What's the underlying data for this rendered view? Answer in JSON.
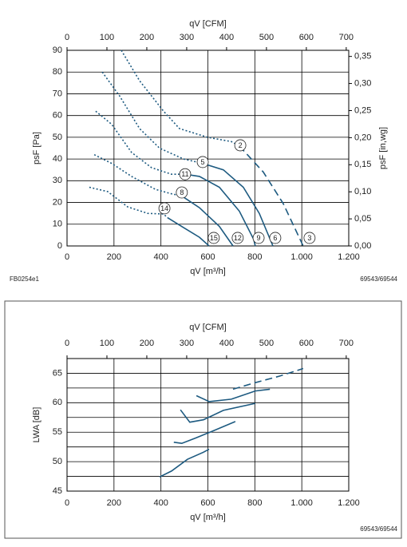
{
  "chart_data": [
    {
      "type": "line",
      "x_label": "qV [m³/h]",
      "x2_label": "qV [CFM]",
      "y_label": "psF [Pa]",
      "y2_label": "psF [in,wg]",
      "xlim": [
        0,
        1200
      ],
      "xticks": [
        0,
        200,
        400,
        600,
        800,
        {
          "value": 1000,
          "label": "1.000"
        },
        {
          "value": 1200,
          "label": "1.200"
        }
      ],
      "x2lim": [
        0,
        706.3
      ],
      "x2ticks": [
        0,
        100,
        200,
        300,
        400,
        500,
        600,
        700
      ],
      "ylim": [
        0,
        90
      ],
      "yticks": [
        0,
        10,
        20,
        30,
        40,
        50,
        60,
        70,
        80,
        90
      ],
      "y2lim": [
        0,
        0.3613
      ],
      "y2ticks": [
        {
          "value": 0,
          "label": "0,00"
        },
        {
          "value": 0.05,
          "label": "0,05"
        },
        {
          "value": 0.1,
          "label": "0,10"
        },
        {
          "value": 0.15,
          "label": "0,15"
        },
        {
          "value": 0.2,
          "label": "0,20"
        },
        {
          "value": 0.25,
          "label": "0,25"
        },
        {
          "value": 0.3,
          "label": "0,30"
        },
        {
          "value": 0.35,
          "label": "0,35"
        }
      ],
      "grid": true,
      "series": [
        {
          "color": "#1d5a80",
          "style": "dotted",
          "x": [
            231,
            309,
            411,
            479,
            598,
            700,
            734
          ],
          "values": [
            90,
            76,
            62,
            54,
            50,
            48,
            46
          ]
        },
        {
          "color": "#1d5a80",
          "style": "dashed",
          "x": [
            734,
            836,
            921,
            1006
          ],
          "values": [
            46,
            34,
            19.5,
            0
          ]
        },
        {
          "color": "#1d5a80",
          "style": "dotted",
          "x": [
            150,
            224,
            309,
            394,
            496,
            578
          ],
          "values": [
            80,
            69,
            54,
            45,
            40,
            38
          ]
        },
        {
          "color": "#1d5a80",
          "style": "solid",
          "x": [
            578,
            666,
            751,
            819,
            877
          ],
          "values": [
            38,
            35,
            27,
            15,
            0
          ]
        },
        {
          "color": "#1d5a80",
          "style": "dotted",
          "x": [
            122,
            190,
            275,
            360,
            445,
            503
          ],
          "values": [
            62,
            56,
            43,
            36,
            33,
            33
          ]
        },
        {
          "color": "#1d5a80",
          "style": "solid",
          "x": [
            503,
            564,
            649,
            734,
            795,
            802
          ],
          "values": [
            33,
            32,
            27,
            16,
            3,
            0
          ]
        },
        {
          "color": "#1d5a80",
          "style": "dotted",
          "x": [
            116,
            190,
            275,
            377,
            445,
            489
          ],
          "values": [
            42,
            38,
            32,
            26,
            24,
            23
          ]
        },
        {
          "color": "#1d5a80",
          "style": "solid",
          "x": [
            489,
            564,
            649,
            707
          ],
          "values": [
            23,
            17.6,
            9,
            0
          ]
        },
        {
          "color": "#1d5a80",
          "style": "dotted",
          "x": [
            95,
            173,
            258,
            343,
            411,
            428
          ],
          "values": [
            27,
            25,
            18,
            15,
            14.7,
            13
          ]
        },
        {
          "color": "#1d5a80",
          "style": "solid",
          "x": [
            428,
            496,
            564,
            605
          ],
          "values": [
            13,
            8.5,
            4,
            0
          ]
        }
      ],
      "annotations": [
        {
          "text": "2",
          "x": 738,
          "y": 46.3
        },
        {
          "text": "5",
          "x": 578,
          "y": 38.6
        },
        {
          "text": "11",
          "x": 503,
          "y": 33
        },
        {
          "text": "8",
          "x": 489,
          "y": 24.6
        },
        {
          "text": "14",
          "x": 415,
          "y": 17.3
        },
        {
          "text": "15",
          "x": 625,
          "y": 3.7
        },
        {
          "text": "12",
          "x": 727,
          "y": 3.7
        },
        {
          "text": "9",
          "x": 816,
          "y": 3.7
        },
        {
          "text": "6",
          "x": 887,
          "y": 3.7
        },
        {
          "text": "3",
          "x": 1033,
          "y": 3.7
        }
      ],
      "footer_left": "FB0254e1",
      "footer_right": "69543/69544"
    },
    {
      "type": "line",
      "x_label": "qV [m³/h]",
      "x2_label": "qV [CFM]",
      "y_label": "LWA [dB]",
      "xlim": [
        0,
        1200
      ],
      "xticks": [
        0,
        200,
        400,
        600,
        800,
        {
          "value": 1000,
          "label": "1.000"
        },
        {
          "value": 1200,
          "label": "1.200"
        }
      ],
      "x2lim": [
        0,
        706.3
      ],
      "x2ticks": [
        0,
        100,
        200,
        300,
        400,
        500,
        600,
        700
      ],
      "ylim": [
        45,
        67.5
      ],
      "yticks": [
        45,
        50,
        55,
        60,
        65
      ],
      "y_minor_grid": [
        47.5,
        52.5,
        57.5,
        62.5
      ],
      "grid": true,
      "series": [
        {
          "color": "#1d5a80",
          "style": "solid",
          "x": [
            394,
            445,
            513,
            581,
            605
          ],
          "values": [
            47.4,
            48.4,
            50.4,
            51.6,
            52.1
          ]
        },
        {
          "color": "#1d5a80",
          "style": "solid",
          "x": [
            455,
            489,
            547,
            615,
            717
          ],
          "values": [
            53.3,
            53.1,
            54,
            55.1,
            56.8
          ]
        },
        {
          "color": "#1d5a80",
          "style": "solid",
          "x": [
            483,
            523,
            581,
            666,
            802
          ],
          "values": [
            58.8,
            56.7,
            57.1,
            58.7,
            59.9
          ]
        },
        {
          "color": "#1d5a80",
          "style": "solid",
          "x": [
            551,
            605,
            700,
            802,
            864
          ],
          "values": [
            61.2,
            60.2,
            60.6,
            62,
            62.3
          ]
        },
        {
          "color": "#1d5a80",
          "style": "dashed",
          "x": [
            707,
            802,
            904,
            1006
          ],
          "values": [
            62.3,
            63.4,
            64.5,
            65.8
          ]
        }
      ],
      "footer_right": "69543/69544"
    }
  ]
}
